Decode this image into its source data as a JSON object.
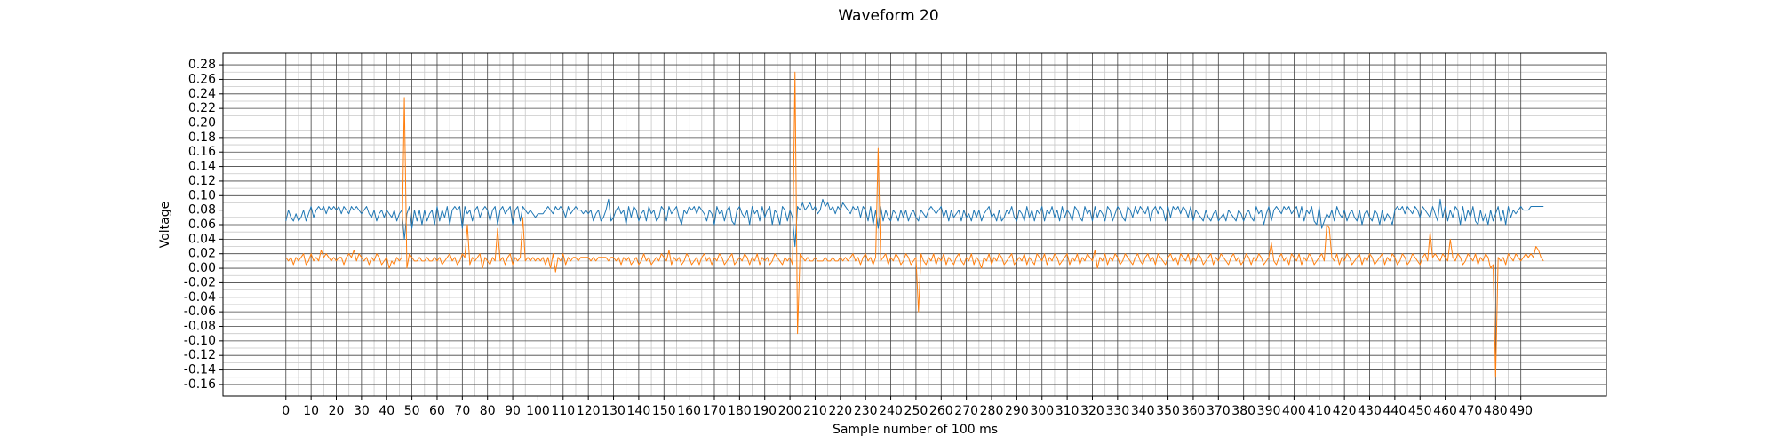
{
  "chart_data": {
    "type": "line",
    "title": "Waveform 20",
    "x_label": "Sample number of 100 ms",
    "y_label": "Voltage",
    "grid": true,
    "minor_grid": true,
    "xlim": [
      -24.95,
      523.95
    ],
    "ylim": [
      -0.176,
      0.296
    ],
    "xticks": [
      0,
      10,
      20,
      30,
      40,
      50,
      60,
      70,
      80,
      90,
      100,
      110,
      120,
      130,
      140,
      150,
      160,
      170,
      180,
      190,
      200,
      210,
      220,
      230,
      240,
      250,
      260,
      270,
      280,
      290,
      300,
      310,
      320,
      330,
      340,
      350,
      360,
      370,
      380,
      390,
      400,
      410,
      420,
      430,
      440,
      450,
      460,
      470,
      480,
      490
    ],
    "yticks": [
      -0.16,
      -0.14,
      -0.12,
      {
        "value": -0.1,
        "label": "-0.10"
      },
      -0.08,
      -0.06,
      -0.04,
      -0.02,
      {
        "value": 0,
        "label": "0.00"
      },
      0.02,
      0.04,
      0.06,
      0.08,
      {
        "value": 0.1,
        "label": "0.10"
      },
      0.12,
      0.14,
      0.16,
      0.18,
      {
        "value": 0.2,
        "label": "0.20"
      },
      0.22,
      0.24,
      0.26,
      0.28
    ],
    "series": [
      {
        "color": "#1f77b4",
        "values": [
          0.065,
          0.08,
          0.07,
          0.065,
          0.075,
          0.065,
          0.07,
          0.08,
          0.065,
          0.075,
          0.085,
          0.07,
          0.08,
          0.085,
          0.08,
          0.085,
          0.075,
          0.085,
          0.08,
          0.085,
          0.08,
          0.085,
          0.075,
          0.085,
          0.08,
          0.075,
          0.085,
          0.08,
          0.085,
          0.08,
          0.075,
          0.08,
          0.085,
          0.075,
          0.07,
          0.08,
          0.065,
          0.075,
          0.08,
          0.07,
          0.08,
          0.075,
          0.07,
          0.08,
          0.065,
          0.075,
          0.08,
          0.04,
          0.075,
          0.085,
          0.055,
          0.08,
          0.065,
          0.08,
          0.06,
          0.08,
          0.065,
          0.075,
          0.08,
          0.06,
          0.085,
          0.065,
          0.08,
          0.07,
          0.085,
          0.06,
          0.08,
          0.085,
          0.08,
          0.085,
          0.055,
          0.085,
          0.075,
          0.08,
          0.065,
          0.08,
          0.085,
          0.07,
          0.08,
          0.085,
          0.08,
          0.065,
          0.08,
          0.085,
          0.06,
          0.08,
          0.085,
          0.075,
          0.08,
          0.085,
          0.06,
          0.08,
          0.085,
          0.065,
          0.085,
          0.08,
          0.075,
          0.08,
          0.075,
          0.07,
          0.075,
          0.075,
          0.075,
          0.08,
          0.085,
          0.08,
          0.075,
          0.085,
          0.08,
          0.085,
          0.08,
          0.07,
          0.085,
          0.075,
          0.08,
          0.085,
          0.08,
          0.08,
          0.075,
          0.08,
          0.075,
          0.08,
          0.065,
          0.075,
          0.08,
          0.065,
          0.07,
          0.08,
          0.095,
          0.065,
          0.07,
          0.08,
          0.085,
          0.075,
          0.08,
          0.06,
          0.085,
          0.07,
          0.085,
          0.08,
          0.065,
          0.075,
          0.08,
          0.065,
          0.085,
          0.075,
          0.08,
          0.065,
          0.07,
          0.085,
          0.08,
          0.065,
          0.085,
          0.075,
          0.08,
          0.085,
          0.07,
          0.06,
          0.08,
          0.075,
          0.085,
          0.08,
          0.085,
          0.075,
          0.085,
          0.08,
          0.075,
          0.065,
          0.08,
          0.075,
          0.06,
          0.085,
          0.075,
          0.08,
          0.065,
          0.08,
          0.085,
          0.065,
          0.06,
          0.08,
          0.085,
          0.075,
          0.07,
          0.08,
          0.06,
          0.085,
          0.075,
          0.08,
          0.065,
          0.085,
          0.07,
          0.08,
          0.085,
          0.06,
          0.08,
          0.075,
          0.06,
          0.085,
          0.08,
          0.065,
          0.08,
          0.07,
          0.03,
          0.085,
          0.08,
          0.09,
          0.08,
          0.085,
          0.09,
          0.08,
          0.085,
          0.075,
          0.08,
          0.095,
          0.085,
          0.09,
          0.08,
          0.085,
          0.075,
          0.085,
          0.08,
          0.09,
          0.085,
          0.08,
          0.075,
          0.085,
          0.08,
          0.085,
          0.07,
          0.085,
          0.08,
          0.065,
          0.085,
          0.06,
          0.08,
          0.055,
          0.085,
          0.065,
          0.08,
          0.07,
          0.065,
          0.08,
          0.075,
          0.065,
          0.08,
          0.07,
          0.08,
          0.065,
          0.075,
          0.08,
          0.07,
          0.065,
          0.08,
          0.075,
          0.07,
          0.08,
          0.085,
          0.08,
          0.075,
          0.08,
          0.085,
          0.07,
          0.08,
          0.065,
          0.08,
          0.07,
          0.075,
          0.08,
          0.065,
          0.08,
          0.07,
          0.075,
          0.065,
          0.08,
          0.07,
          0.08,
          0.065,
          0.075,
          0.08,
          0.085,
          0.07,
          0.075,
          0.065,
          0.08,
          0.065,
          0.07,
          0.08,
          0.075,
          0.085,
          0.07,
          0.065,
          0.08,
          0.075,
          0.065,
          0.085,
          0.07,
          0.08,
          0.065,
          0.08,
          0.075,
          0.085,
          0.065,
          0.08,
          0.075,
          0.085,
          0.07,
          0.08,
          0.065,
          0.085,
          0.07,
          0.08,
          0.075,
          0.065,
          0.085,
          0.08,
          0.07,
          0.065,
          0.085,
          0.075,
          0.08,
          0.065,
          0.085,
          0.07,
          0.08,
          0.075,
          0.065,
          0.085,
          0.08,
          0.065,
          0.075,
          0.085,
          0.08,
          0.07,
          0.065,
          0.085,
          0.08,
          0.07,
          0.085,
          0.075,
          0.085,
          0.08,
          0.075,
          0.085,
          0.065,
          0.08,
          0.085,
          0.075,
          0.085,
          0.08,
          0.065,
          0.085,
          0.07,
          0.085,
          0.08,
          0.085,
          0.075,
          0.085,
          0.08,
          0.07,
          0.085,
          0.065,
          0.08,
          0.075,
          0.07,
          0.065,
          0.08,
          0.07,
          0.065,
          0.075,
          0.08,
          0.065,
          0.07,
          0.075,
          0.065,
          0.08,
          0.075,
          0.07,
          0.065,
          0.08,
          0.075,
          0.065,
          0.075,
          0.08,
          0.07,
          0.065,
          0.085,
          0.075,
          0.08,
          0.06,
          0.075,
          0.085,
          0.065,
          0.08,
          0.085,
          0.08,
          0.075,
          0.085,
          0.08,
          0.085,
          0.075,
          0.08,
          0.085,
          0.07,
          0.085,
          0.065,
          0.08,
          0.075,
          0.085,
          0.065,
          0.06,
          0.085,
          0.055,
          0.065,
          0.075,
          0.07,
          0.08,
          0.065,
          0.085,
          0.075,
          0.07,
          0.08,
          0.065,
          0.075,
          0.08,
          0.07,
          0.065,
          0.08,
          0.06,
          0.075,
          0.08,
          0.07,
          0.065,
          0.08,
          0.075,
          0.06,
          0.08,
          0.065,
          0.075,
          0.07,
          0.06,
          0.08,
          0.085,
          0.08,
          0.085,
          0.075,
          0.085,
          0.08,
          0.075,
          0.085,
          0.08,
          0.07,
          0.085,
          0.08,
          0.075,
          0.07,
          0.085,
          0.075,
          0.065,
          0.095,
          0.07,
          0.085,
          0.065,
          0.08,
          0.07,
          0.085,
          0.08,
          0.06,
          0.085,
          0.065,
          0.08,
          0.07,
          0.085,
          0.065,
          0.06,
          0.08,
          0.065,
          0.075,
          0.06,
          0.08,
          0.065,
          0.075,
          0.085,
          0.065,
          0.08,
          0.06,
          0.085,
          0.07,
          0.08,
          0.075,
          0.08,
          0.085,
          0.08,
          0.08,
          0.08,
          0.085,
          0.085,
          0.085,
          0.085,
          0.085,
          0.085
        ]
      },
      {
        "color": "#ff7f0e",
        "values": [
          0.015,
          0.01,
          0.015,
          0.005,
          0.015,
          0.01,
          0.015,
          0.02,
          0.005,
          0.01,
          0.02,
          0.01,
          0.015,
          0.01,
          0.025,
          0.015,
          0.02,
          0.015,
          0.01,
          0.015,
          0.01,
          0.015,
          0.015,
          0.005,
          0.015,
          0.02,
          0.015,
          0.025,
          0.01,
          0.02,
          0.015,
          0.01,
          0.015,
          0.005,
          0.015,
          0.01,
          0.02,
          0.015,
          0.005,
          0.01,
          0.015,
          0.0,
          0.01,
          0.005,
          0.015,
          0.01,
          0.015,
          0.235,
          0.0,
          0.02,
          0.015,
          0.01,
          0.01,
          0.015,
          0.01,
          0.01,
          0.015,
          0.01,
          0.01,
          0.015,
          0.01,
          0.015,
          0.005,
          0.01,
          0.015,
          0.02,
          0.01,
          0.015,
          0.005,
          0.01,
          0.02,
          0.015,
          0.06,
          0.005,
          0.015,
          0.01,
          0.015,
          0.02,
          0.0,
          0.015,
          0.01,
          0.005,
          0.015,
          0.01,
          0.055,
          0.01,
          0.015,
          0.005,
          0.015,
          0.02,
          0.005,
          0.015,
          0.01,
          0.015,
          0.07,
          0.01,
          0.015,
          0.01,
          0.015,
          0.01,
          0.015,
          0.01,
          0.015,
          0.005,
          0.015,
          0.0,
          0.02,
          -0.005,
          0.015,
          0.01,
          0.02,
          0.005,
          0.015,
          0.01,
          0.015,
          0.015,
          0.01,
          0.015,
          0.015,
          0.015,
          0.015,
          0.01,
          0.015,
          0.01,
          0.015,
          0.015,
          0.015,
          0.015,
          0.01,
          0.015,
          0.015,
          0.01,
          0.015,
          0.005,
          0.015,
          0.01,
          0.015,
          0.005,
          0.01,
          0.015,
          0.005,
          0.01,
          0.02,
          0.01,
          0.015,
          0.005,
          0.01,
          0.015,
          0.01,
          0.02,
          0.015,
          0.01,
          0.025,
          0.005,
          0.015,
          0.01,
          0.015,
          0.005,
          0.01,
          0.02,
          0.015,
          0.005,
          0.01,
          0.015,
          0.005,
          0.015,
          0.02,
          0.01,
          0.015,
          0.005,
          0.015,
          0.01,
          0.02,
          0.015,
          0.005,
          0.01,
          0.015,
          0.02,
          0.005,
          0.01,
          0.015,
          0.01,
          0.02,
          0.015,
          0.005,
          0.015,
          0.01,
          0.02,
          0.005,
          0.015,
          0.01,
          0.015,
          0.005,
          0.01,
          0.02,
          0.015,
          0.01,
          0.005,
          0.015,
          0.01,
          0.015,
          0.005,
          0.27,
          -0.09,
          0.02,
          0.015,
          0.01,
          0.015,
          0.01,
          0.01,
          0.015,
          0.01,
          0.01,
          0.01,
          0.015,
          0.01,
          0.01,
          0.015,
          0.01,
          0.01,
          0.015,
          0.01,
          0.015,
          0.01,
          0.015,
          0.02,
          0.01,
          0.015,
          0.005,
          0.015,
          0.02,
          0.01,
          0.015,
          0.005,
          0.015,
          0.165,
          0.01,
          0.015,
          0.02,
          0.005,
          0.015,
          0.01,
          0.02,
          0.015,
          0.005,
          0.01,
          0.02,
          0.015,
          0.005,
          0.01,
          0.015,
          -0.06,
          0.02,
          0.01,
          0.005,
          0.015,
          0.01,
          0.02,
          0.005,
          0.015,
          0.01,
          0.02,
          0.005,
          0.015,
          0.01,
          0.005,
          0.015,
          0.02,
          0.01,
          0.005,
          0.015,
          0.01,
          0.02,
          0.005,
          0.015,
          0.01,
          0.0,
          0.015,
          0.01,
          0.02,
          0.005,
          0.015,
          0.01,
          0.02,
          0.015,
          0.005,
          0.01,
          0.015,
          0.02,
          0.005,
          0.01,
          0.015,
          0.01,
          0.02,
          0.005,
          0.015,
          0.01,
          0.005,
          0.02,
          0.015,
          0.01,
          0.02,
          0.005,
          0.015,
          0.01,
          0.02,
          0.015,
          0.005,
          0.01,
          0.015,
          0.02,
          0.005,
          0.015,
          0.01,
          0.02,
          0.005,
          0.015,
          0.01,
          0.02,
          0.015,
          0.01,
          0.025,
          0.0,
          0.015,
          0.01,
          0.02,
          0.005,
          0.015,
          0.01,
          0.02,
          0.015,
          0.005,
          0.01,
          0.02,
          0.015,
          0.01,
          0.005,
          0.015,
          0.02,
          0.01,
          0.005,
          0.015,
          0.02,
          0.01,
          0.015,
          0.005,
          0.02,
          0.015,
          0.01,
          0.005,
          0.015,
          0.02,
          0.01,
          0.015,
          0.005,
          0.02,
          0.015,
          0.01,
          0.02,
          0.005,
          0.015,
          0.01,
          0.02,
          0.015,
          0.005,
          0.01,
          0.015,
          0.02,
          0.005,
          0.015,
          0.01,
          0.02,
          0.015,
          0.01,
          0.005,
          0.015,
          0.02,
          0.01,
          0.015,
          0.005,
          0.01,
          0.02,
          0.015,
          0.005,
          0.015,
          0.01,
          0.02,
          0.015,
          0.005,
          0.01,
          0.015,
          0.035,
          0.01,
          0.005,
          0.015,
          0.02,
          0.01,
          0.015,
          0.005,
          0.02,
          0.015,
          0.01,
          0.02,
          0.005,
          0.015,
          0.01,
          0.02,
          0.015,
          0.005,
          0.01,
          0.015,
          0.02,
          0.01,
          0.06,
          0.055,
          0.015,
          0.01,
          0.02,
          0.005,
          0.015,
          0.01,
          0.02,
          0.015,
          0.005,
          0.01,
          0.015,
          0.02,
          0.005,
          0.015,
          0.01,
          0.02,
          0.015,
          0.005,
          0.01,
          0.015,
          0.02,
          0.005,
          0.015,
          0.01,
          0.02,
          0.015,
          0.005,
          0.01,
          0.02,
          0.015,
          0.005,
          0.01,
          0.02,
          0.015,
          0.01,
          0.005,
          0.015,
          0.02,
          0.01,
          0.05,
          0.015,
          0.02,
          0.015,
          0.01,
          0.02,
          0.015,
          0.01,
          0.04,
          0.015,
          0.01,
          0.02,
          0.015,
          0.005,
          0.01,
          0.02,
          0.015,
          0.01,
          0.02,
          0.005,
          0.015,
          0.01,
          0.02,
          0.015,
          0.0,
          0.005,
          -0.15,
          0.015,
          0.01,
          0.015,
          0.005,
          0.02,
          0.015,
          0.01,
          0.02,
          0.015,
          0.01,
          0.015,
          0.02,
          0.015,
          0.02,
          0.015,
          0.03,
          0.025,
          0.015,
          0.01
        ]
      }
    ]
  }
}
